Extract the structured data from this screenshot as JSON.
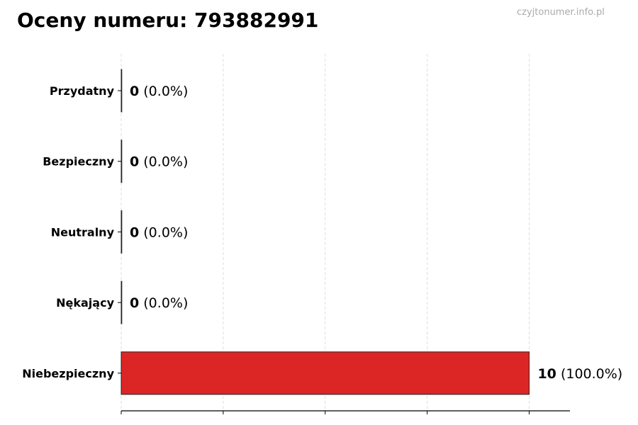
{
  "title": "Oceny numeru: 793882991",
  "watermark": "czyjtonumer.info.pl",
  "chart_data": {
    "type": "bar",
    "orientation": "horizontal",
    "title": "Oceny numeru: 793882991",
    "categories": [
      "Przydatny",
      "Bezpieczny",
      "Neutralny",
      "Nękający",
      "Niebezpieczny"
    ],
    "values": [
      0,
      0,
      0,
      0,
      10
    ],
    "value_labels": [
      "0",
      "0",
      "0",
      "0",
      "10"
    ],
    "percent_labels": [
      "(0.0%)",
      "(0.0%)",
      "(0.0%)",
      "(0.0%)",
      "(100.0%)"
    ],
    "colors": [
      "#22c55e",
      "#3b82f6",
      "#9ca3af",
      "#f97316",
      "#dc2626"
    ],
    "xlim": [
      0,
      11
    ],
    "x_gridlines": [
      0,
      2.5,
      5,
      7.5,
      10
    ],
    "grid": true,
    "xlabel": "",
    "ylabel": ""
  }
}
